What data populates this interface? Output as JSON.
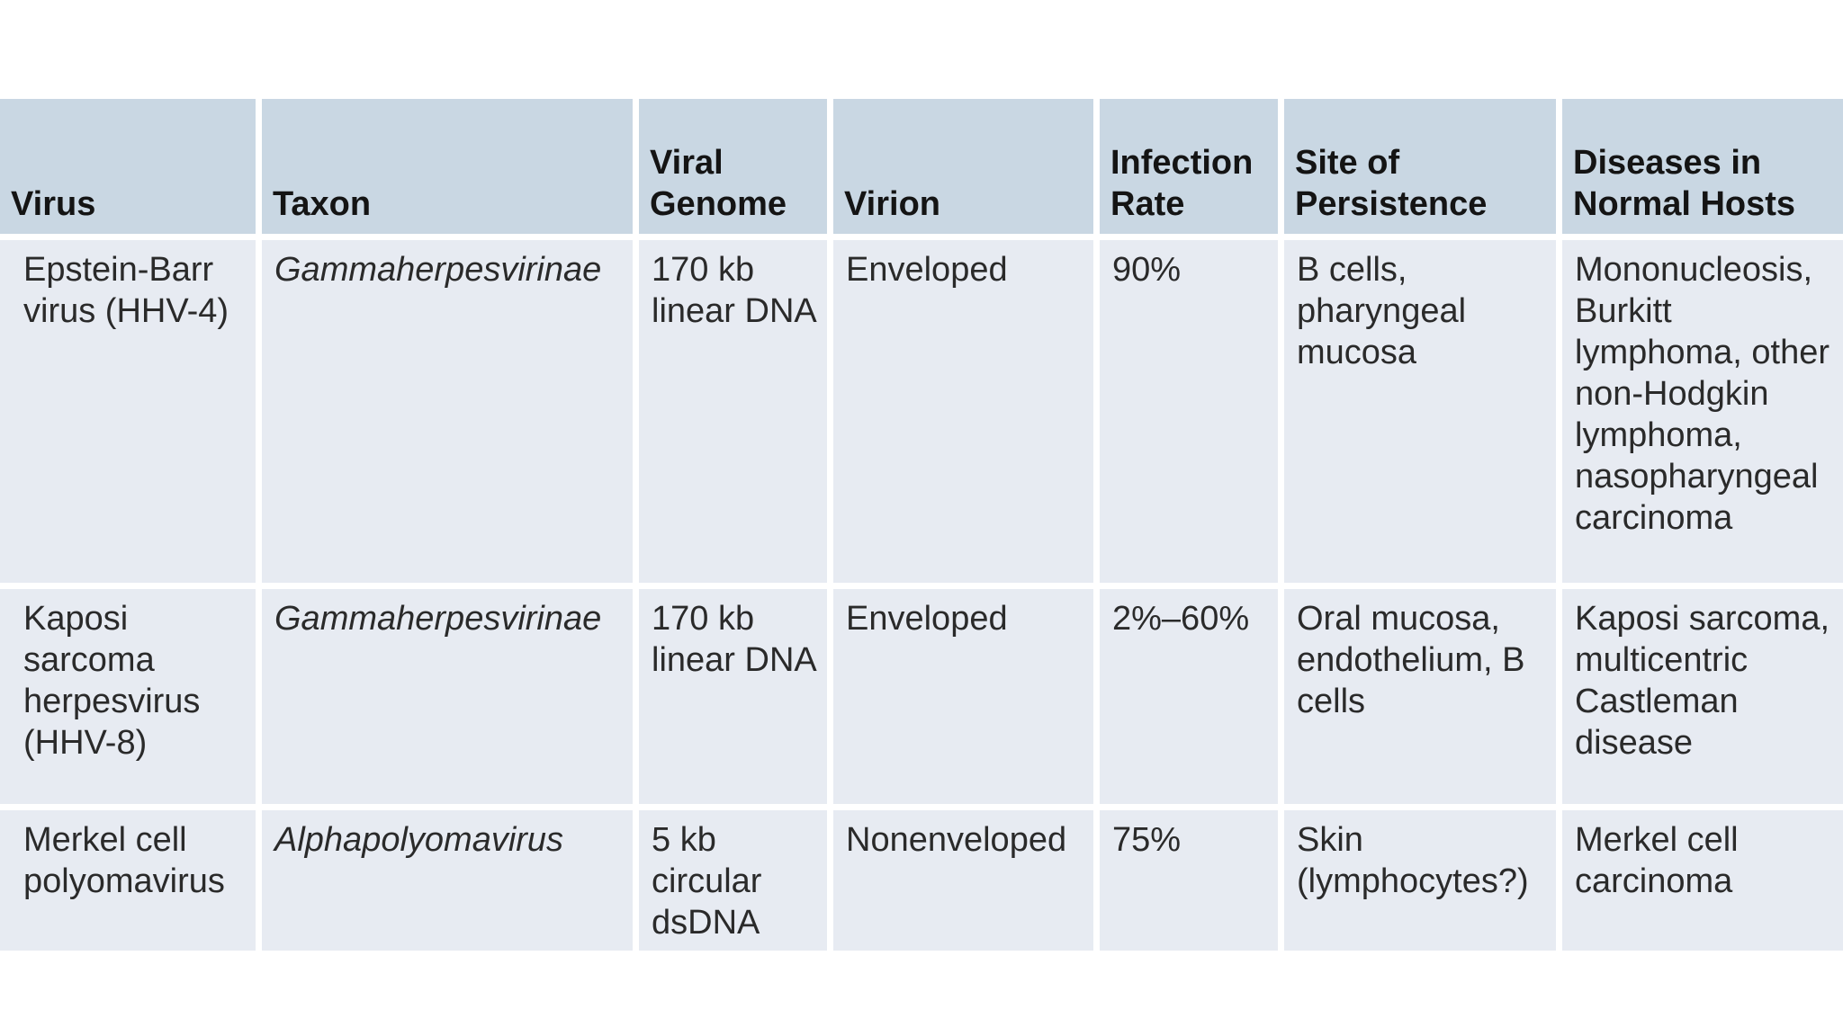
{
  "table": {
    "headers": [
      "Virus",
      "Taxon",
      "Viral Genome",
      "Virion",
      "Infection Rate",
      "Site of Persistence",
      "Diseases in Normal Hosts"
    ],
    "rows": [
      {
        "virus": "Epstein-Barr virus (HHV-4)",
        "taxon": "Gammaherpesvirinae",
        "genome": "170 kb linear DNA",
        "virion": "Enveloped",
        "infection_rate": "90%",
        "site": "B cells, pharyngeal mucosa",
        "diseases": "Mononucleosis, Burkitt lymphoma, other non-Hodgkin lymphoma, nasopharyngeal carcinoma"
      },
      {
        "virus": "Kaposi sarcoma herpesvirus (HHV-8)",
        "taxon": "Gammaherpesvirinae",
        "genome": "170 kb linear DNA",
        "virion": "Enveloped",
        "infection_rate": "2%–60%",
        "site": "Oral mucosa, endothelium, B cells",
        "diseases": "Kaposi sarcoma, multicentric Castleman disease"
      },
      {
        "virus": "Merkel cell polyomavirus",
        "taxon": "Alphapolyomavirus",
        "genome": "5 kb circular dsDNA",
        "virion": "Nonenveloped",
        "infection_rate": "75%",
        "site": "Skin (lymphocytes?)",
        "diseases": "Merkel cell carcinoma"
      }
    ]
  },
  "colors": {
    "header_bg": "#c9d7e3",
    "body_bg": "#e7ebf2",
    "gridline": "#ffffff"
  }
}
